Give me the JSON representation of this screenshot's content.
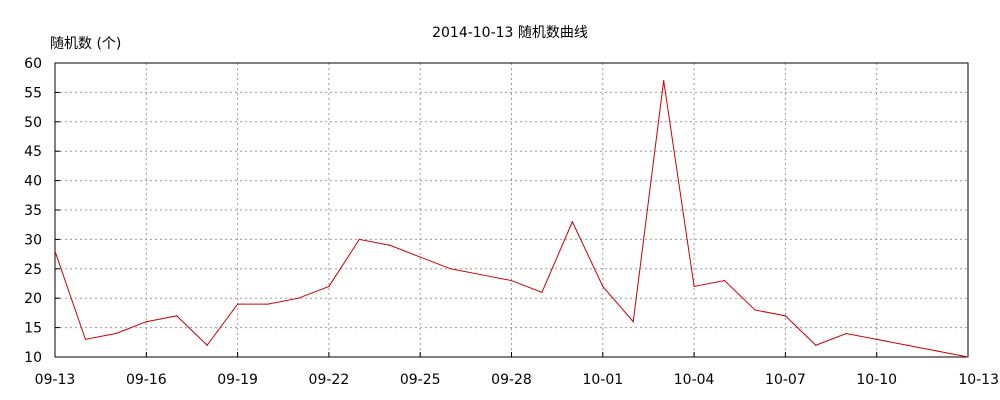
{
  "chart_data": {
    "type": "line",
    "title": "2014-10-13 随机数曲线",
    "ylabel": "随机数 (个)",
    "xlabel": "",
    "ylim": [
      10,
      60
    ],
    "yticks": [
      10,
      15,
      20,
      25,
      30,
      35,
      40,
      45,
      50,
      55,
      60
    ],
    "x_tick_labels": [
      "09-13",
      "09-16",
      "09-19",
      "09-22",
      "09-25",
      "09-28",
      "10-01",
      "10-04",
      "10-07",
      "10-10",
      "10-13"
    ],
    "grid": true,
    "line_color": "#cc0000",
    "x": [
      "09-13",
      "09-14",
      "09-15",
      "09-16",
      "09-17",
      "09-18",
      "09-19",
      "09-20",
      "09-21",
      "09-22",
      "09-23",
      "09-24",
      "09-25",
      "09-26",
      "09-27",
      "09-28",
      "09-29",
      "09-30",
      "10-01",
      "10-02",
      "10-03",
      "10-04",
      "10-05",
      "10-06",
      "10-07",
      "10-08",
      "10-09",
      "10-10",
      "10-11",
      "10-12",
      "10-13"
    ],
    "values": [
      28,
      13,
      14,
      16,
      17,
      12,
      19,
      19,
      20,
      22,
      30,
      29,
      27,
      25,
      24,
      23,
      21,
      33,
      22,
      16,
      57,
      22,
      23,
      18,
      17,
      12,
      14,
      13,
      12,
      11,
      10
    ]
  }
}
